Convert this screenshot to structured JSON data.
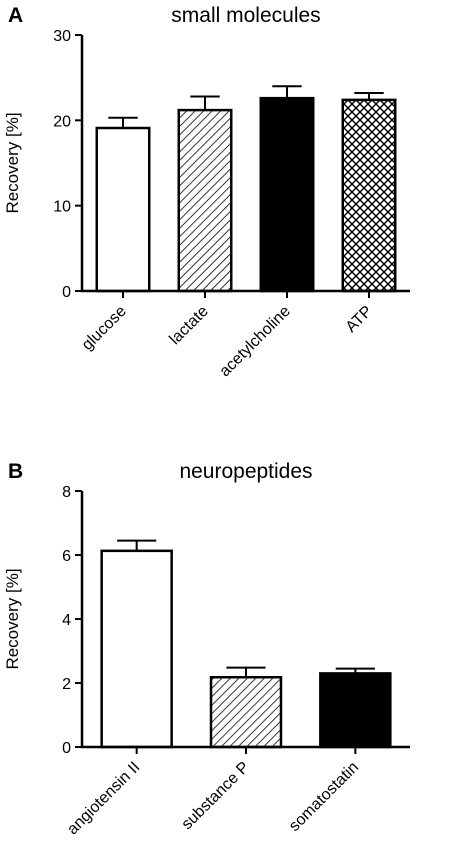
{
  "chart_data": [
    {
      "panel": "A",
      "type": "bar",
      "title": "small molecules",
      "ylabel": "Recovery [%]",
      "xlabel": "",
      "ylim": [
        0,
        30
      ],
      "yticks": [
        0,
        10,
        20,
        30
      ],
      "grid": false,
      "categories": [
        "glucose",
        "lactate",
        "acetylcholine",
        "ATP"
      ],
      "values": [
        19.1,
        21.2,
        22.6,
        22.4
      ],
      "errors": [
        1.2,
        1.6,
        1.4,
        0.8
      ],
      "fills": [
        "white",
        "diagonal-hatch",
        "black",
        "crosshatch"
      ]
    },
    {
      "panel": "B",
      "type": "bar",
      "title": "neuropeptides",
      "ylabel": "Recovery [%]",
      "xlabel": "",
      "ylim": [
        0,
        8
      ],
      "yticks": [
        0,
        2,
        4,
        6,
        8
      ],
      "grid": false,
      "categories": [
        "angiotensin II",
        "substance P",
        "somatostatin"
      ],
      "values": [
        6.13,
        2.18,
        2.3
      ],
      "errors": [
        0.32,
        0.3,
        0.15
      ],
      "fills": [
        "white",
        "diagonal-hatch",
        "black"
      ]
    }
  ]
}
